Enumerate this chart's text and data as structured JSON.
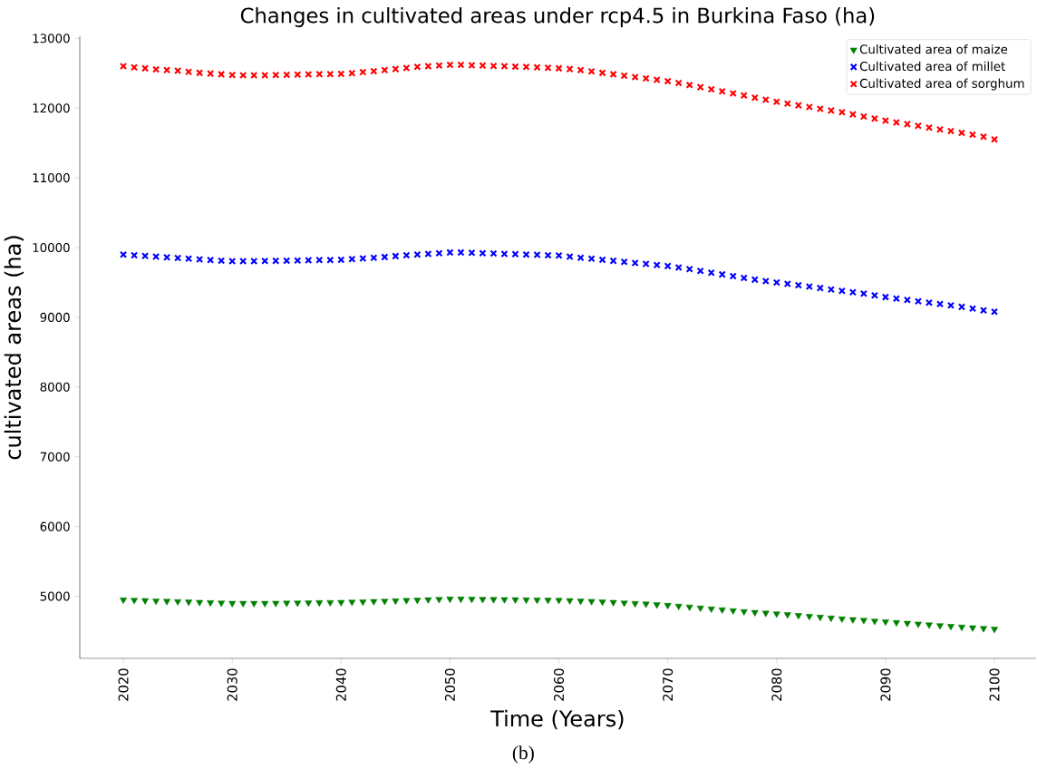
{
  "chart_data": {
    "type": "scatter",
    "title": "Changes in cultivated areas under rcp4.5 in Burkina Faso (ha)",
    "xlabel": "Time (Years)",
    "ylabel": "cultivated areas (ha)",
    "annotations": [
      "(b)"
    ],
    "x": [
      2020,
      2021,
      2022,
      2023,
      2024,
      2025,
      2026,
      2027,
      2028,
      2029,
      2030,
      2031,
      2032,
      2033,
      2034,
      2035,
      2036,
      2037,
      2038,
      2039,
      2040,
      2041,
      2042,
      2043,
      2044,
      2045,
      2046,
      2047,
      2048,
      2049,
      2050,
      2051,
      2052,
      2053,
      2054,
      2055,
      2056,
      2057,
      2058,
      2059,
      2060,
      2061,
      2062,
      2063,
      2064,
      2065,
      2066,
      2067,
      2068,
      2069,
      2070,
      2071,
      2072,
      2073,
      2074,
      2075,
      2076,
      2077,
      2078,
      2079,
      2080,
      2081,
      2082,
      2083,
      2084,
      2085,
      2086,
      2087,
      2088,
      2089,
      2090,
      2091,
      2092,
      2093,
      2094,
      2095,
      2096,
      2097,
      2098,
      2099,
      2100
    ],
    "series": [
      {
        "name": "Cultivated area of maize",
        "color": "#008000",
        "marker": "triangle",
        "values": [
          4950,
          4945,
          4940,
          4935,
          4930,
          4925,
          4920,
          4915,
          4910,
          4905,
          4900,
          4900,
          4900,
          4900,
          4902,
          4904,
          4906,
          4908,
          4910,
          4912,
          4914,
          4918,
          4922,
          4927,
          4932,
          4937,
          4942,
          4947,
          4952,
          4957,
          4962,
          4962,
          4960,
          4958,
          4956,
          4954,
          4952,
          4950,
          4948,
          4946,
          4944,
          4940,
          4934,
          4928,
          4921,
          4914,
          4906,
          4898,
          4890,
          4881,
          4872,
          4860,
          4847,
          4834,
          4821,
          4808,
          4795,
          4782,
          4770,
          4760,
          4750,
          4738,
          4726,
          4714,
          4702,
          4690,
          4678,
          4667,
          4656,
          4646,
          4636,
          4625,
          4614,
          4603,
          4592,
          4581,
          4570,
          4560,
          4550,
          4540,
          4530
        ]
      },
      {
        "name": "Cultivated area of millet",
        "color": "#0000ff",
        "marker": "cross",
        "values": [
          9900,
          9890,
          9880,
          9870,
          9860,
          9850,
          9840,
          9830,
          9820,
          9812,
          9805,
          9805,
          9805,
          9808,
          9810,
          9812,
          9815,
          9818,
          9820,
          9822,
          9825,
          9835,
          9845,
          9855,
          9865,
          9878,
          9890,
          9900,
          9910,
          9920,
          9930,
          9930,
          9925,
          9920,
          9915,
          9910,
          9905,
          9900,
          9895,
          9890,
          9885,
          9870,
          9855,
          9840,
          9825,
          9810,
          9795,
          9780,
          9765,
          9750,
          9735,
          9715,
          9690,
          9665,
          9640,
          9615,
          9590,
          9565,
          9540,
          9520,
          9500,
          9480,
          9460,
          9440,
          9420,
          9400,
          9380,
          9360,
          9340,
          9315,
          9290,
          9270,
          9250,
          9230,
          9210,
          9190,
          9170,
          9150,
          9125,
          9100,
          9080
        ]
      },
      {
        "name": "Cultivated area of sorghum",
        "color": "#ff0000",
        "marker": "cross",
        "values": [
          12600,
          12585,
          12570,
          12555,
          12545,
          12535,
          12520,
          12505,
          12495,
          12485,
          12475,
          12470,
          12470,
          12470,
          12475,
          12478,
          12480,
          12483,
          12486,
          12488,
          12490,
          12500,
          12515,
          12530,
          12545,
          12560,
          12575,
          12590,
          12600,
          12610,
          12620,
          12620,
          12615,
          12610,
          12605,
          12600,
          12595,
          12590,
          12585,
          12578,
          12570,
          12560,
          12545,
          12525,
          12505,
          12485,
          12465,
          12445,
          12425,
          12405,
          12385,
          12360,
          12330,
          12300,
          12270,
          12240,
          12210,
          12180,
          12150,
          12120,
          12090,
          12065,
          12040,
          12015,
          11990,
          11965,
          11940,
          11910,
          11880,
          11850,
          11820,
          11795,
          11770,
          11745,
          11720,
          11695,
          11670,
          11645,
          11620,
          11590,
          11550
        ]
      }
    ],
    "xlim": [
      2016,
      2103.8
    ],
    "ylim": [
      4110,
      13030
    ],
    "xticks": [
      2020,
      2030,
      2040,
      2050,
      2060,
      2070,
      2080,
      2090,
      2100
    ],
    "yticks": [
      5000,
      6000,
      7000,
      8000,
      9000,
      10000,
      11000,
      12000,
      13000
    ],
    "grid": false,
    "legend": "top right"
  }
}
